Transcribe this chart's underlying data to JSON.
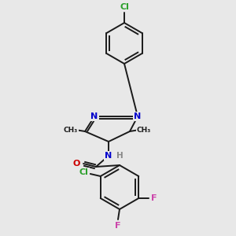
{
  "bg_color": "#e8e8e8",
  "bond_color": "#1a1a1a",
  "atom_colors": {
    "Cl": "#2ca02c",
    "N": "#0000cc",
    "O": "#cc0000",
    "F": "#cc44aa",
    "H": "#888888",
    "C": "#1a1a1a"
  },
  "font_size_atom": 8.0,
  "font_size_small": 7.0,
  "lw": 1.4
}
